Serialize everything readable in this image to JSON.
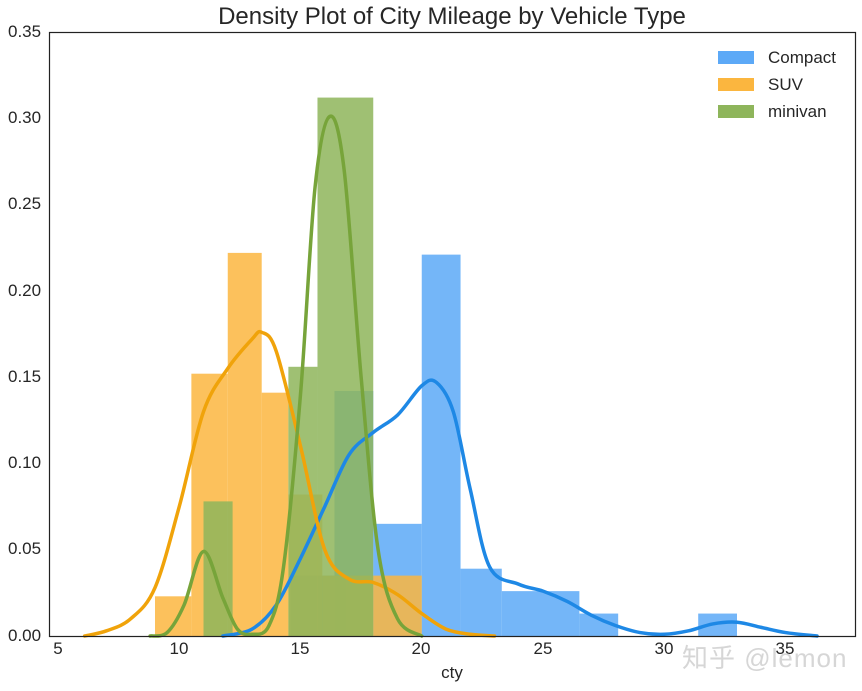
{
  "chart_data": {
    "type": "histogram+kde",
    "title": "Density Plot of City Mileage by Vehicle Type",
    "xlabel": "cty",
    "ylabel": "",
    "xlim": [
      4.6,
      38.4
    ],
    "ylim": [
      0,
      0.35
    ],
    "xticks": [
      5,
      10,
      15,
      20,
      25,
      30,
      35
    ],
    "yticks": [
      0.0,
      0.05,
      0.1,
      0.15,
      0.2,
      0.25,
      0.3,
      0.35
    ],
    "grid": false,
    "legend_position": "upper right",
    "series": [
      {
        "name": "Compact",
        "color": "#1e88e5",
        "bar_color": "#5ca9f7",
        "bins": [
          {
            "x0": 14.6,
            "x1": 16.9,
            "y": 0.035
          },
          {
            "x0": 16.4,
            "x1": 18.0,
            "y": 0.142
          },
          {
            "x0": 18.0,
            "x1": 20.0,
            "y": 0.065
          },
          {
            "x0": 20.0,
            "x1": 21.6,
            "y": 0.221
          },
          {
            "x0": 21.6,
            "x1": 23.3,
            "y": 0.039
          },
          {
            "x0": 23.3,
            "x1": 26.5,
            "y": 0.026
          },
          {
            "x0": 26.5,
            "x1": 28.1,
            "y": 0.013
          },
          {
            "x0": 31.4,
            "x1": 33.0,
            "y": 0.013
          }
        ],
        "kde": [
          [
            11.8,
            0.0
          ],
          [
            13,
            0.004
          ],
          [
            14,
            0.018
          ],
          [
            15,
            0.045
          ],
          [
            16,
            0.075
          ],
          [
            17,
            0.105
          ],
          [
            18,
            0.118
          ],
          [
            19,
            0.128
          ],
          [
            20,
            0.145
          ],
          [
            20.6,
            0.147
          ],
          [
            21.3,
            0.13
          ],
          [
            22,
            0.085
          ],
          [
            22.8,
            0.04
          ],
          [
            24,
            0.03
          ],
          [
            25,
            0.026
          ],
          [
            26,
            0.02
          ],
          [
            27,
            0.012
          ],
          [
            28,
            0.006
          ],
          [
            29,
            0.002
          ],
          [
            30,
            0.001
          ],
          [
            31,
            0.003
          ],
          [
            32,
            0.007
          ],
          [
            33,
            0.008
          ],
          [
            34,
            0.005
          ],
          [
            35,
            0.002
          ],
          [
            36.3,
            0.0
          ]
        ]
      },
      {
        "name": "SUV",
        "color": "#f0a30a",
        "bar_color": "#fbb63f",
        "bins": [
          {
            "x0": 9.0,
            "x1": 10.5,
            "y": 0.023
          },
          {
            "x0": 10.5,
            "x1": 12.0,
            "y": 0.152
          },
          {
            "x0": 12.0,
            "x1": 13.4,
            "y": 0.222
          },
          {
            "x0": 13.4,
            "x1": 14.5,
            "y": 0.141
          },
          {
            "x0": 14.5,
            "x1": 15.9,
            "y": 0.082
          },
          {
            "x0": 15.9,
            "x1": 18.0,
            "y": 0.035
          },
          {
            "x0": 18.0,
            "x1": 20.0,
            "y": 0.035
          }
        ],
        "kde": [
          [
            6.1,
            0.0
          ],
          [
            7,
            0.003
          ],
          [
            8,
            0.01
          ],
          [
            9,
            0.028
          ],
          [
            10,
            0.075
          ],
          [
            11,
            0.13
          ],
          [
            12,
            0.155
          ],
          [
            13,
            0.172
          ],
          [
            13.4,
            0.176
          ],
          [
            14,
            0.165
          ],
          [
            15,
            0.11
          ],
          [
            16,
            0.05
          ],
          [
            17,
            0.033
          ],
          [
            18,
            0.031
          ],
          [
            19,
            0.024
          ],
          [
            20,
            0.013
          ],
          [
            21,
            0.004
          ],
          [
            22,
            0.001
          ],
          [
            23,
            0.0
          ]
        ]
      },
      {
        "name": "minivan",
        "color": "#77a43a",
        "bar_color": "#8eb55b",
        "bins": [
          {
            "x0": 11.0,
            "x1": 12.2,
            "y": 0.078
          },
          {
            "x0": 14.5,
            "x1": 15.7,
            "y": 0.156
          },
          {
            "x0": 15.7,
            "x1": 18.0,
            "y": 0.312
          }
        ],
        "kde": [
          [
            8.8,
            0.0
          ],
          [
            9.5,
            0.002
          ],
          [
            10.2,
            0.018
          ],
          [
            11,
            0.049
          ],
          [
            11.8,
            0.022
          ],
          [
            12.4,
            0.004
          ],
          [
            13,
            0.001
          ],
          [
            13.7,
            0.006
          ],
          [
            14.3,
            0.04
          ],
          [
            15,
            0.14
          ],
          [
            15.6,
            0.26
          ],
          [
            16.2,
            0.301
          ],
          [
            16.8,
            0.27
          ],
          [
            17.5,
            0.15
          ],
          [
            18.2,
            0.05
          ],
          [
            19,
            0.01
          ],
          [
            20,
            0.0
          ]
        ]
      }
    ]
  },
  "legend": {
    "items": [
      {
        "label": "Compact",
        "color": "#5ca9f7"
      },
      {
        "label": "SUV",
        "color": "#fbb63f"
      },
      {
        "label": "minivan",
        "color": "#8eb55b"
      }
    ]
  },
  "axes": {
    "xlabel": "cty",
    "ytick_labels": [
      "0.35",
      "0.30",
      "0.25",
      "0.20",
      "0.15",
      "0.10",
      "0.05",
      "0.00"
    ],
    "xtick_labels": [
      "5",
      "10",
      "15",
      "20",
      "25",
      "30",
      "35"
    ]
  },
  "watermark": "知乎 @lemon"
}
